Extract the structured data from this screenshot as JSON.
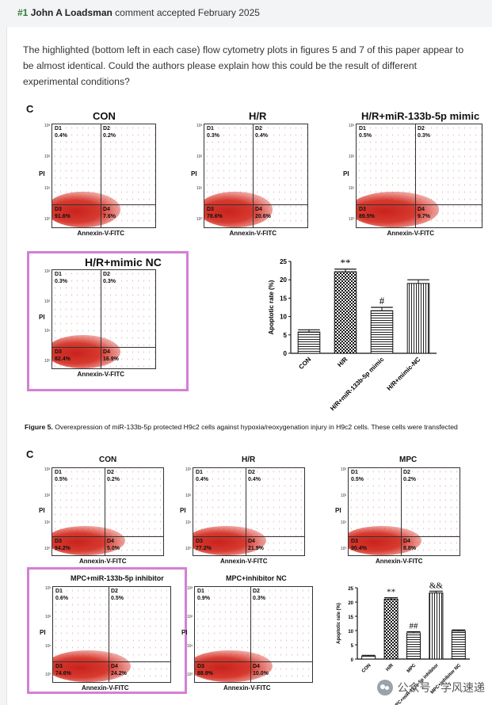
{
  "header": {
    "number": "#1",
    "author": "John A Loadsman",
    "status": "comment accepted February 2025"
  },
  "comment": {
    "text": "The highlighted (bottom left in each case) flow cytometry plots in figures 5 and 7 of this paper appear to be almost identical. Could the authors please explain how this could be the result of different experimental conditions?"
  },
  "figure5": {
    "panel_label": "C",
    "caption_bold": "Figure 5.",
    "caption": "Overexpression of miR-133b-5p protected H9c2 cells against hypoxia/reoxygenation injury in H9c2 cells. These cells were transfected",
    "axis_y": "PI",
    "axis_x": "Annexin-V-FITC",
    "plots": [
      {
        "title": "CON",
        "d1": "D1",
        "d1v": "0.4%",
        "d2": "D2",
        "d2v": "0.2%",
        "d3": "D3",
        "d3v": "91.6%",
        "d4": "D4",
        "d4v": "7.6%"
      },
      {
        "title": "H/R",
        "d1": "D1",
        "d1v": "0.3%",
        "d2": "D2",
        "d2v": "0.4%",
        "d3": "D3",
        "d3v": "78.6%",
        "d4": "D4",
        "d4v": "20.6%"
      },
      {
        "title": "H/R+miR-133b-5p mimic",
        "d1": "D1",
        "d1v": "0.5%",
        "d2": "D2",
        "d2v": "0.3%",
        "d3": "D3",
        "d3v": "89.5%",
        "d4": "D4",
        "d4v": "9.7%"
      },
      {
        "title": "H/R+mimic NC",
        "d1": "D1",
        "d1v": "0.3%",
        "d2": "D2",
        "d2v": "0.3%",
        "d3": "D3",
        "d3v": "82.4%",
        "d4": "D4",
        "d4v": "16.9%"
      }
    ],
    "ticks": [
      "10³",
      "10²",
      "10¹",
      "10⁰"
    ],
    "chart_data": {
      "type": "bar",
      "categories": [
        "CON",
        "H/R",
        "H/R+miR-133b-5p mimic",
        "H/R+mimic-NC"
      ],
      "values": [
        5.8,
        22.2,
        11.6,
        19.0
      ],
      "errors": [
        0.6,
        0.7,
        0.9,
        1.0
      ],
      "annotations": [
        "",
        "**",
        "#",
        ""
      ],
      "ylabel": "Apoptotic rate (%)",
      "ylim": [
        0,
        25
      ],
      "yticks": [
        0,
        5,
        10,
        15,
        20,
        25
      ]
    }
  },
  "figure7": {
    "panel_label": "C",
    "axis_y": "PI",
    "axis_x": "Annexin-V-FITC",
    "plots": [
      {
        "title": "CON",
        "d1": "D1",
        "d1v": "0.5%",
        "d2": "D2",
        "d2v": "0.2%",
        "d3": "D3",
        "d3v": "94.2%",
        "d4": "D4",
        "d4v": "5.0%"
      },
      {
        "title": "H/R",
        "d1": "D1",
        "d1v": "0.4%",
        "d2": "D2",
        "d2v": "0.4%",
        "d3": "D3",
        "d3v": "77.2%",
        "d4": "D4",
        "d4v": "21.9%"
      },
      {
        "title": "MPC",
        "d1": "D1",
        "d1v": "0.5%",
        "d2": "D2",
        "d2v": "0.2%",
        "d3": "D3",
        "d3v": "90.4%",
        "d4": "D4",
        "d4v": "8.8%"
      },
      {
        "title": "MPC+miR-133b-5p inhibitor",
        "d1": "D1",
        "d1v": "0.6%",
        "d2": "D2",
        "d2v": "0.5%",
        "d3": "D3",
        "d3v": "74.6%",
        "d4": "D4",
        "d4v": "24.2%"
      },
      {
        "title": "MPC+inhibitor NC",
        "d1": "D1",
        "d1v": "0.9%",
        "d2": "D2",
        "d2v": "0.3%",
        "d3": "D3",
        "d3v": "88.9%",
        "d4": "D4",
        "d4v": "10.0%"
      }
    ],
    "ticks": [
      "10³",
      "10²",
      "10¹",
      "10⁰"
    ],
    "chart_data": {
      "type": "bar",
      "categories": [
        "CON",
        "H/R",
        "MPC",
        "MPC+miR-133b-5p inhibitor",
        "MPC+inhibitor NC"
      ],
      "values": [
        1.0,
        21.0,
        9.2,
        23.2,
        9.8
      ],
      "errors": [
        0.3,
        0.5,
        0.4,
        0.6,
        0.4
      ],
      "annotations": [
        "",
        "**",
        "##",
        "&&",
        ""
      ],
      "ylabel": "Apoptotic rate (%)",
      "ylim": [
        0,
        25
      ],
      "yticks": [
        0,
        5,
        10,
        15,
        20,
        25
      ]
    }
  },
  "watermark": {
    "text": "公众号 · 学风速递"
  },
  "colors": {
    "hash": "#2e7d32",
    "highlight": "#d47fd6",
    "dots": "#c8231d"
  }
}
